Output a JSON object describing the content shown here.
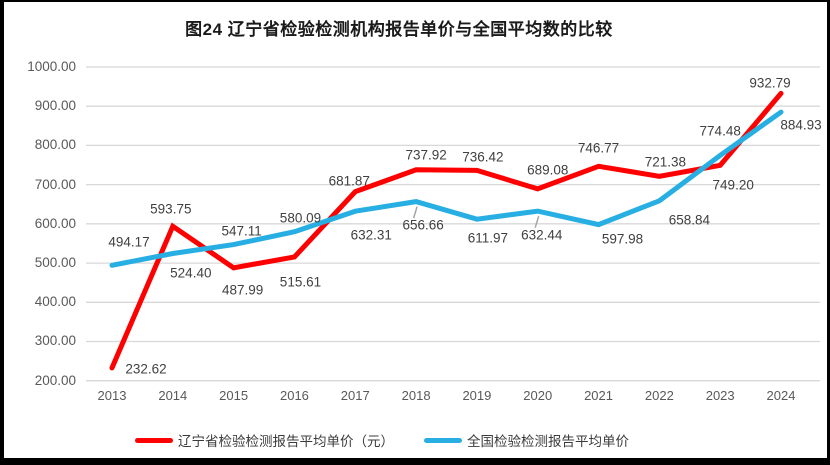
{
  "title": "图24 辽宁省检验检测机构报告单价与全国平均数的比较",
  "chart_data": {
    "type": "line",
    "categories": [
      "2013",
      "2014",
      "2015",
      "2016",
      "2017",
      "2018",
      "2019",
      "2020",
      "2021",
      "2022",
      "2023",
      "2024"
    ],
    "series": [
      {
        "name": "辽宁省检验检测报告平均单价（元）",
        "color": "#FE0000",
        "values": [
          232.62,
          593.75,
          487.99,
          515.61,
          681.87,
          737.92,
          736.42,
          689.08,
          746.77,
          721.38,
          749.2,
          932.79
        ],
        "label_offsets": [
          [
            34,
            1
          ],
          [
            -2,
            -17
          ],
          [
            9,
            22
          ],
          [
            6,
            25
          ],
          [
            -6,
            -11
          ],
          [
            10,
            -15
          ],
          [
            6,
            -13
          ],
          [
            10,
            -19
          ],
          [
            0,
            -18
          ],
          [
            6,
            -14
          ],
          [
            13,
            20
          ],
          [
            -11,
            -10
          ]
        ],
        "leader_indices": []
      },
      {
        "name": "全国检验检测报告平均单价",
        "color": "#27AEE3",
        "values": [
          494.17,
          524.4,
          547.11,
          580.09,
          632.31,
          656.66,
          611.97,
          632.44,
          597.98,
          658.84,
          774.48,
          884.93
        ],
        "label_offsets": [
          [
            17,
            -23
          ],
          [
            18,
            20
          ],
          [
            8,
            -14
          ],
          [
            6,
            -14
          ],
          [
            16,
            24
          ],
          [
            7,
            23
          ],
          [
            11,
            19
          ],
          [
            4,
            24
          ],
          [
            24,
            14
          ],
          [
            30,
            19
          ],
          [
            0,
            -24
          ],
          [
            20,
            13
          ]
        ],
        "leader_indices": [
          5,
          7
        ]
      }
    ],
    "ylim": [
      200,
      1000
    ],
    "y_tick_labels": [
      "1000.00",
      "900.00",
      "800.00",
      "700.00",
      "600.00",
      "500.00",
      "400.00",
      "300.00",
      "200.00"
    ],
    "y_tick_values": [
      1000,
      900,
      800,
      700,
      600,
      500,
      400,
      300,
      200
    ],
    "value_decimals": 2,
    "grid": true,
    "gridline_color": "#D8D8D8",
    "leader_line_color": "#A6A6A6",
    "legend_position": "bottom"
  }
}
